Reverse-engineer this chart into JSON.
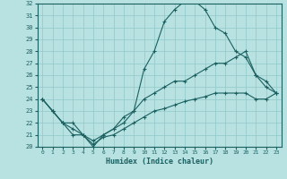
{
  "xlabel": "Humidex (Indice chaleur)",
  "ylabel": "",
  "xlim": [
    -0.5,
    23.5
  ],
  "ylim": [
    20,
    32
  ],
  "xticks": [
    0,
    1,
    2,
    3,
    4,
    5,
    6,
    7,
    8,
    9,
    10,
    11,
    12,
    13,
    14,
    15,
    16,
    17,
    18,
    19,
    20,
    21,
    22,
    23
  ],
  "yticks": [
    20,
    21,
    22,
    23,
    24,
    25,
    26,
    27,
    28,
    29,
    30,
    31,
    32
  ],
  "bg_color": "#b8e2e2",
  "grid_color": "#90c8c8",
  "line_color": "#1a6060",
  "line1_x": [
    0,
    1,
    2,
    3,
    4,
    5,
    6,
    7,
    8,
    9,
    10,
    11,
    12,
    13,
    14,
    15,
    16,
    17,
    18,
    19,
    20,
    21,
    22,
    23
  ],
  "line1_y": [
    24,
    23,
    22,
    21,
    21,
    20,
    21,
    21.5,
    22.5,
    23,
    26.5,
    28,
    30.5,
    31.5,
    32.2,
    32.2,
    31.5,
    30,
    29.5,
    28,
    27.5,
    26,
    25,
    24.5
  ],
  "line2_x": [
    0,
    1,
    2,
    3,
    4,
    5,
    6,
    7,
    8,
    9,
    10,
    11,
    12,
    13,
    14,
    15,
    16,
    17,
    18,
    19,
    20,
    21,
    22,
    23
  ],
  "line2_y": [
    24,
    23,
    22,
    22,
    21,
    20.5,
    21,
    21.5,
    22,
    23,
    24,
    24.5,
    25,
    25.5,
    25.5,
    26,
    26.5,
    27,
    27,
    27.5,
    28,
    26,
    25.5,
    24.5
  ],
  "line3_x": [
    0,
    1,
    2,
    3,
    4,
    5,
    6,
    7,
    8,
    9,
    10,
    11,
    12,
    13,
    14,
    15,
    16,
    17,
    18,
    19,
    20,
    21,
    22,
    23
  ],
  "line3_y": [
    24,
    23,
    22,
    21.5,
    21,
    20.2,
    20.8,
    21,
    21.5,
    22,
    22.5,
    23,
    23.2,
    23.5,
    23.8,
    24,
    24.2,
    24.5,
    24.5,
    24.5,
    24.5,
    24,
    24,
    24.5
  ]
}
